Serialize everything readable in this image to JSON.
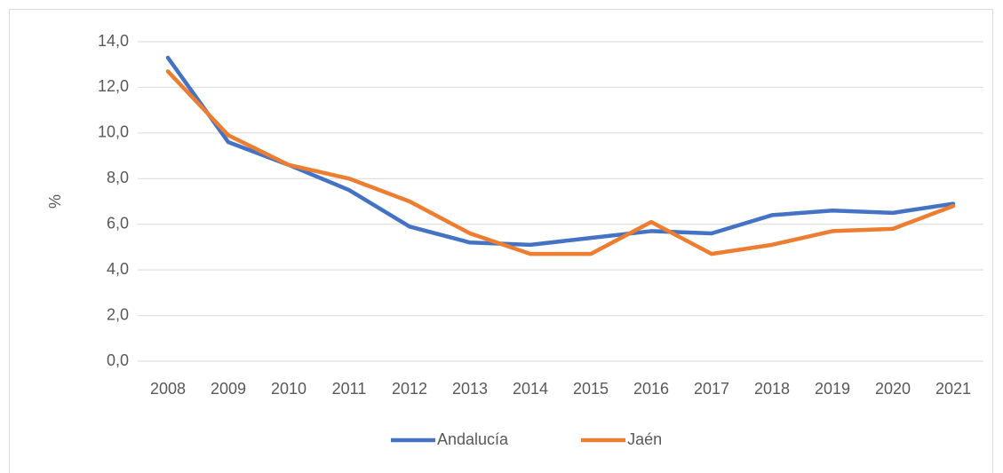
{
  "chart_data": {
    "type": "line",
    "y_label": "%",
    "categories": [
      "2008",
      "2009",
      "2010",
      "2011",
      "2012",
      "2013",
      "2014",
      "2015",
      "2016",
      "2017",
      "2018",
      "2019",
      "2020",
      "2021"
    ],
    "series": [
      {
        "name": "Andalucía",
        "color": "#4472c4",
        "values": [
          13.3,
          9.6,
          8.6,
          7.5,
          5.9,
          5.2,
          5.1,
          5.4,
          5.7,
          5.6,
          6.4,
          6.6,
          6.5,
          6.9
        ]
      },
      {
        "name": "Jaén",
        "color": "#ed7d31",
        "values": [
          12.7,
          9.9,
          8.6,
          8.0,
          7.0,
          5.6,
          4.7,
          4.7,
          6.1,
          4.7,
          5.1,
          5.7,
          5.8,
          6.8
        ]
      }
    ],
    "ylim": [
      0,
      14
    ],
    "yticks": [
      {
        "value": 0,
        "label": "0,0"
      },
      {
        "value": 2,
        "label": "2,0"
      },
      {
        "value": 4,
        "label": "4,0"
      },
      {
        "value": 6,
        "label": "6,0"
      },
      {
        "value": 8,
        "label": "8,0"
      },
      {
        "value": 10,
        "label": "10,0"
      },
      {
        "value": 12,
        "label": "12,0"
      },
      {
        "value": 14,
        "label": "14,0"
      }
    ],
    "grid": true,
    "legend": "bottom"
  }
}
